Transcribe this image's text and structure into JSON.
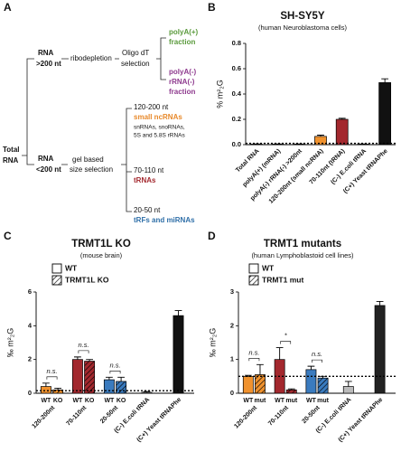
{
  "panel_labels": [
    "A",
    "B",
    "C",
    "D"
  ],
  "diagram": {
    "total": [
      "Total",
      "RNA"
    ],
    "large": {
      "label": [
        "RNA",
        ">200 nt"
      ],
      "step": "ribodepletion",
      "selection": [
        "Oligo dT",
        "selection"
      ],
      "outputs": [
        {
          "label": [
            "polyA(+)",
            "fraction"
          ],
          "color": "#5a9a3c"
        },
        {
          "label": [
            "polyA(-)",
            "rRNA(-)",
            "fraction"
          ],
          "color": "#8e3a8e"
        }
      ]
    },
    "small": {
      "label": [
        "RNA",
        "<200 nt"
      ],
      "step": [
        "gel based",
        "size selection"
      ],
      "fractions": [
        {
          "size": "120-200 nt",
          "name": "small ncRNAs",
          "color": "#e8892a",
          "note": [
            "snRNAs, snoRNAs,",
            "5S and 5.8S rRNAs"
          ]
        },
        {
          "size": "70-110 nt",
          "name": "tRNAs",
          "color": "#a3282e"
        },
        {
          "size": "20-50 nt",
          "name": "tRFs and miRNAs",
          "color": "#2f6fa8"
        }
      ]
    }
  },
  "chart_data": [
    {
      "type": "bar",
      "title": "SH-SY5Y",
      "subtitle": "(human Neuroblastoma cells)",
      "y_label": "% m²₂G",
      "categories": [
        "Total RNA",
        "polyA(+) (mRNA)",
        "polyA(-) rRNA(-) >200nt",
        "120-200nt (small ncRNA)",
        "70-110nt (tRNA)",
        "(C-) E.coli tRNA",
        "(C+) Yeast tRNAPhe"
      ],
      "values": [
        0.004,
        0.004,
        0.004,
        0.065,
        0.2,
        0.004,
        0.49
      ],
      "errors": [
        0.002,
        0.002,
        0.002,
        0.01,
        0.008,
        0.002,
        0.03
      ],
      "colors": [
        "#ffffff",
        "#ffffff",
        "#ffffff",
        "#f0922e",
        "#a3282e",
        "#ffffff",
        "#111111"
      ],
      "ylim": [
        0,
        0.8
      ],
      "yticks": [
        {
          "value": 0,
          "label": "0.0"
        },
        {
          "value": 0.2,
          "label": "0.2"
        },
        {
          "value": 0.4,
          "label": "0.4"
        },
        {
          "value": 0.6,
          "label": "0.6"
        },
        {
          "value": 0.8,
          "label": "0.8"
        }
      ],
      "reference_line": 0.01
    },
    {
      "type": "grouped_bar",
      "title": "TRMT1L KO",
      "subtitle": "(mouse brain)",
      "y_label": "‰ m²₂G",
      "categories": [
        "120-200nt",
        "70-110nt",
        "20-50nt",
        "(C-) E.coli tRNA",
        "(C+) Yeast tRNAPhe"
      ],
      "category_colors": [
        "#f0922e",
        "#a3282e",
        "#3a7bbf",
        "#ffffff",
        "#111111"
      ],
      "series": [
        {
          "name": "WT",
          "short": "WT",
          "hatch": false,
          "values": [
            0.4,
            2.0,
            0.8,
            null,
            null
          ],
          "errors": [
            0.2,
            0.15,
            0.15,
            null,
            null
          ]
        },
        {
          "name": "TRMT1L KO",
          "short": "KO",
          "hatch": true,
          "values": [
            0.2,
            1.9,
            0.7,
            null,
            null
          ],
          "errors": [
            0.1,
            0.1,
            0.25,
            null,
            null
          ]
        }
      ],
      "controls": {
        "values": [
          null,
          null,
          null,
          0.05,
          4.6
        ],
        "errors": [
          null,
          null,
          null,
          0.05,
          0.3
        ]
      },
      "annotations": [
        "n.s.",
        "n.s.",
        "n.s."
      ],
      "reference_line": 0.15,
      "ylim": [
        0,
        6
      ],
      "yticks": [
        0,
        2,
        4,
        6
      ]
    },
    {
      "type": "grouped_bar",
      "title": "TRMT1 mutants",
      "subtitle": "(human Lymphoblastoid cell lines)",
      "y_label": "‰ m²₂G",
      "categories": [
        "120-200nt",
        "70-110nt",
        "20-50nt",
        "(C-) E.coli tRNA",
        "(C+) Yeast tRNAPhe"
      ],
      "category_colors": [
        "#f0922e",
        "#a3282e",
        "#3a7bbf",
        "#bbbbbb",
        "#222222"
      ],
      "series": [
        {
          "name": "WT",
          "short": "WT",
          "hatch": false,
          "values": [
            0.5,
            1.0,
            0.7,
            null,
            null
          ],
          "errors": [
            0.03,
            0.35,
            0.1,
            null,
            null
          ]
        },
        {
          "name": "TRMT1 mut",
          "short": "mut",
          "hatch": true,
          "values": [
            0.55,
            0.1,
            0.45,
            null,
            null
          ],
          "errors": [
            0.3,
            0.03,
            0.05,
            null,
            null
          ]
        }
      ],
      "controls": {
        "values": [
          null,
          null,
          null,
          0.2,
          2.6
        ],
        "errors": [
          null,
          null,
          null,
          0.15,
          0.12
        ]
      },
      "annotations": [
        "n.s.",
        "*",
        "n.s."
      ],
      "reference_line": 0.5,
      "ylim": [
        0,
        3
      ],
      "yticks": [
        0,
        1,
        2,
        3
      ]
    }
  ]
}
